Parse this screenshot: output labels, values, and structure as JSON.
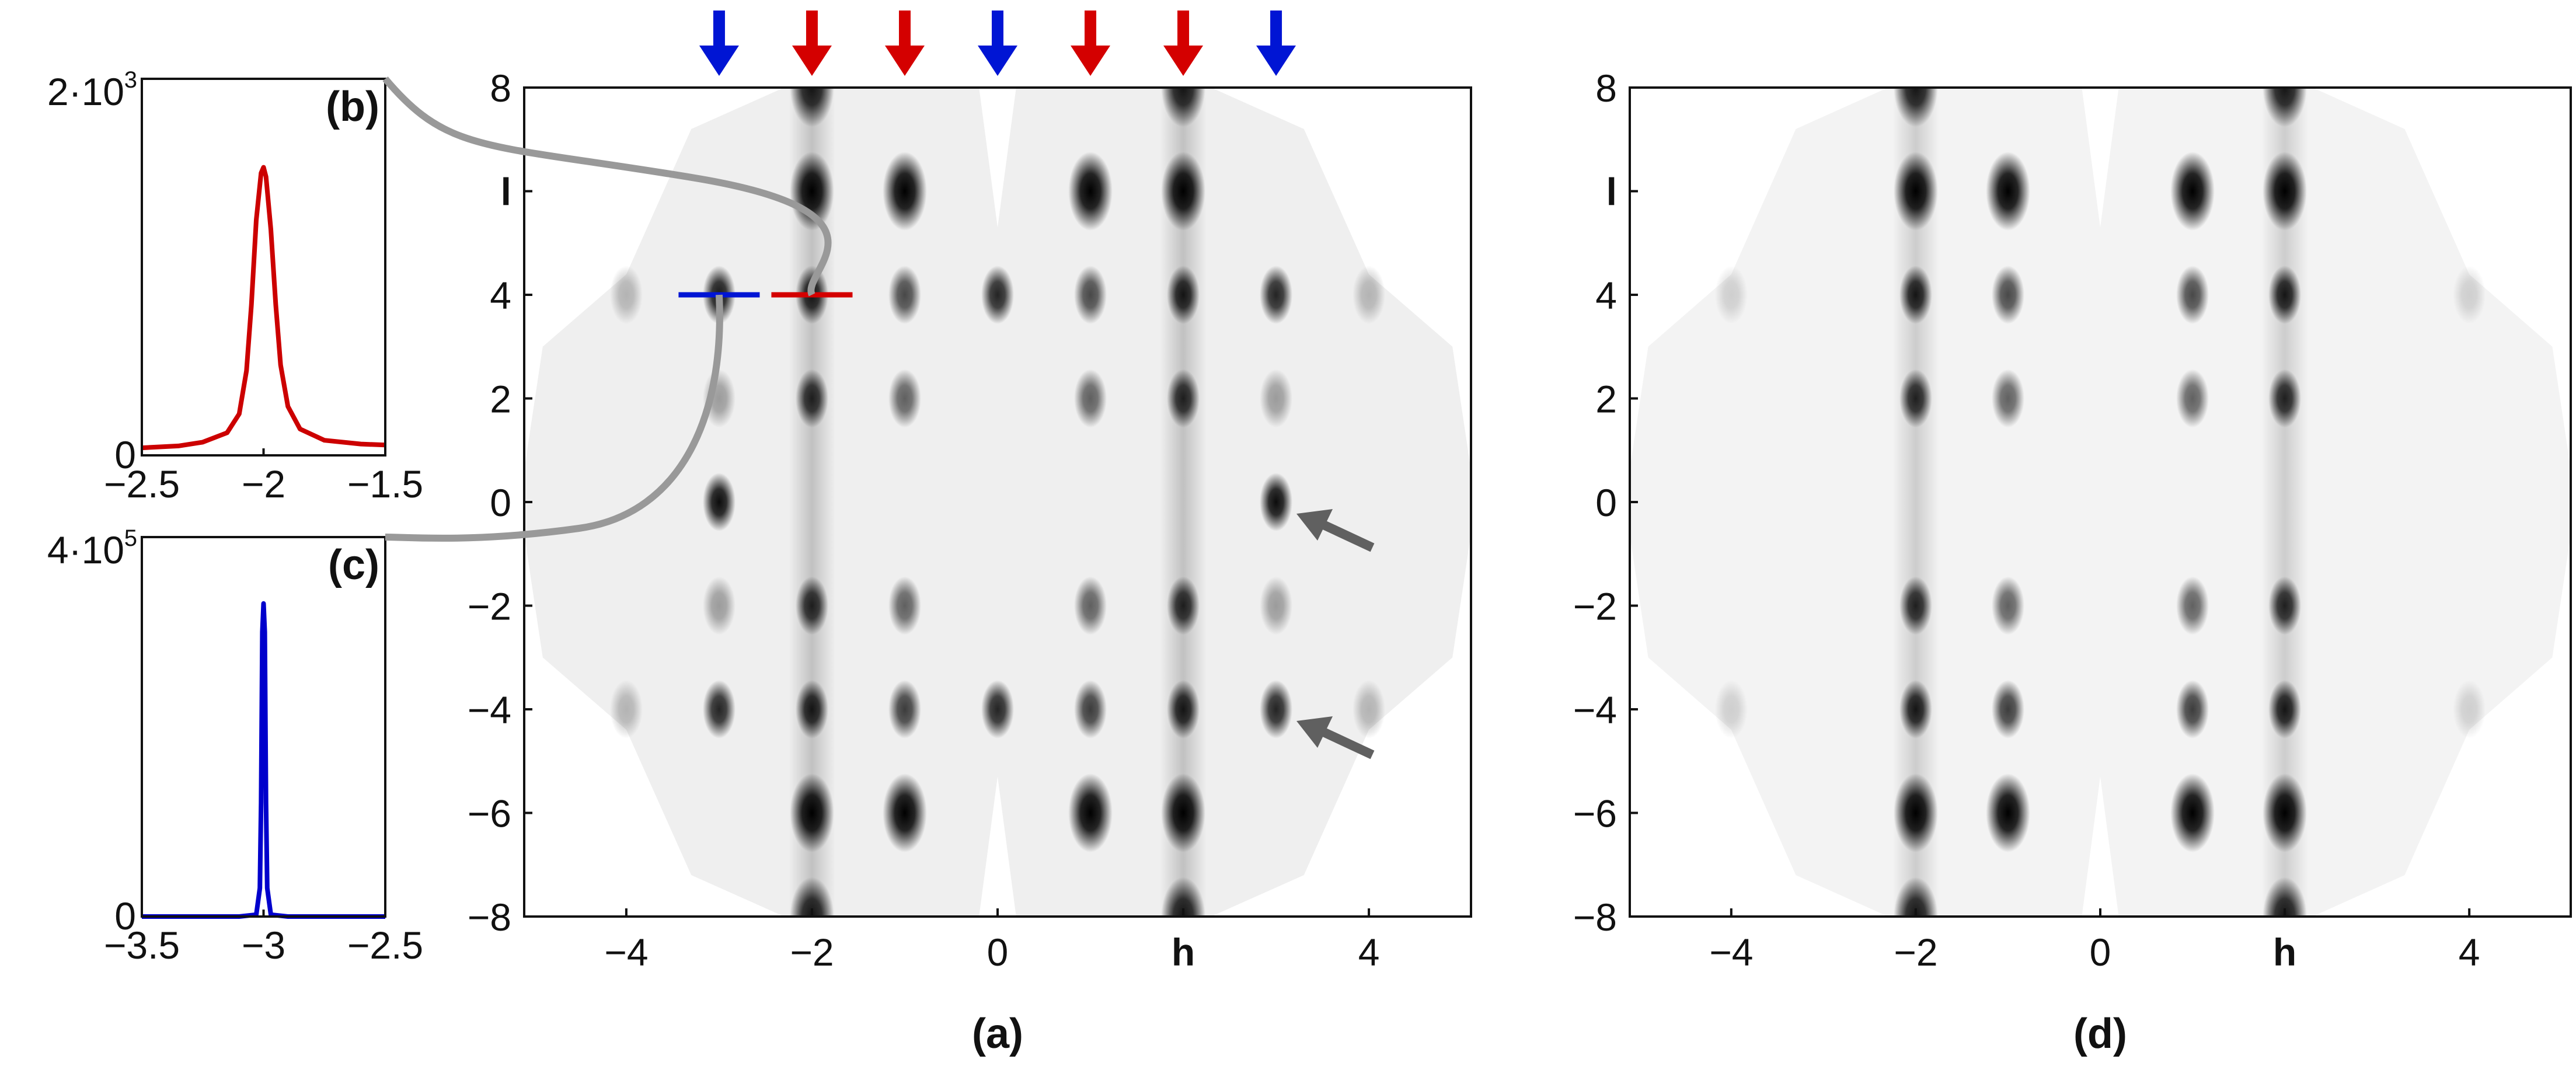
{
  "chart_data": [
    {
      "id": "a",
      "type": "heatmap",
      "panel_label": "(a)",
      "xlabel": "h",
      "ylabel": "l",
      "xlim": [
        -5.1,
        5.1
      ],
      "ylim": [
        -8,
        8
      ],
      "x_ticks": [
        "−4",
        "−2",
        "0",
        "h",
        "4"
      ],
      "x_tick_values": [
        -4,
        -2,
        0,
        2,
        4
      ],
      "y_ticks": [
        "8",
        "l",
        "4",
        "2",
        "0",
        "−2",
        "−4",
        "−6",
        "−8"
      ],
      "y_tick_values": [
        8,
        6,
        4,
        2,
        0,
        -2,
        -4,
        -6,
        -8
      ],
      "grid": false,
      "colormap": "grayscale (white = 0, black = high intensity)",
      "column_markers": [
        {
          "h": -3,
          "color": "#0015d4",
          "kind": "down-arrow"
        },
        {
          "h": -2,
          "color": "#d40000",
          "kind": "down-arrow"
        },
        {
          "h": -1,
          "color": "#d40000",
          "kind": "down-arrow"
        },
        {
          "h": 0,
          "color": "#0015d4",
          "kind": "down-arrow"
        },
        {
          "h": 1,
          "color": "#d40000",
          "kind": "down-arrow"
        },
        {
          "h": 2,
          "color": "#d40000",
          "kind": "down-arrow"
        },
        {
          "h": 3,
          "color": "#0015d4",
          "kind": "down-arrow"
        }
      ],
      "cut_lines": [
        {
          "color": "#0015d4",
          "l": 4,
          "h_range": [
            -3.5,
            -2.5
          ],
          "links_to": "c"
        },
        {
          "color": "#d40000",
          "l": 4,
          "h_range": [
            -2.5,
            -1.5
          ],
          "links_to": "b"
        }
      ],
      "annotation_arrows": [
        {
          "h": 3,
          "l": 0,
          "color": "#606060"
        },
        {
          "h": 3,
          "l": -4,
          "color": "#606060"
        }
      ],
      "spots": [
        {
          "h": -2,
          "l": 8,
          "intensity": 0.9
        },
        {
          "h": -2,
          "l": 6,
          "intensity": 1.0
        },
        {
          "h": -2,
          "l": 4,
          "intensity": 0.9
        },
        {
          "h": -2,
          "l": 2,
          "intensity": 0.85
        },
        {
          "h": -2,
          "l": -2,
          "intensity": 0.85
        },
        {
          "h": -2,
          "l": -4,
          "intensity": 0.9
        },
        {
          "h": -2,
          "l": -6,
          "intensity": 1.0
        },
        {
          "h": -2,
          "l": -8,
          "intensity": 0.9
        },
        {
          "h": -1,
          "l": 6,
          "intensity": 1.0
        },
        {
          "h": -1,
          "l": 4,
          "intensity": 0.7
        },
        {
          "h": -1,
          "l": 2,
          "intensity": 0.6
        },
        {
          "h": -1,
          "l": -2,
          "intensity": 0.6
        },
        {
          "h": -1,
          "l": -4,
          "intensity": 0.75
        },
        {
          "h": -1,
          "l": -6,
          "intensity": 1.0
        },
        {
          "h": 1,
          "l": 6,
          "intensity": 1.0
        },
        {
          "h": 1,
          "l": 4,
          "intensity": 0.7
        },
        {
          "h": 1,
          "l": 2,
          "intensity": 0.6
        },
        {
          "h": 1,
          "l": -2,
          "intensity": 0.6
        },
        {
          "h": 1,
          "l": -4,
          "intensity": 0.75
        },
        {
          "h": 1,
          "l": -6,
          "intensity": 1.0
        },
        {
          "h": 2,
          "l": 8,
          "intensity": 0.9
        },
        {
          "h": 2,
          "l": 6,
          "intensity": 1.0
        },
        {
          "h": 2,
          "l": 4,
          "intensity": 0.9
        },
        {
          "h": 2,
          "l": 2,
          "intensity": 0.85
        },
        {
          "h": 2,
          "l": -2,
          "intensity": 0.85
        },
        {
          "h": 2,
          "l": -4,
          "intensity": 0.9
        },
        {
          "h": 2,
          "l": -6,
          "intensity": 1.0
        },
        {
          "h": 2,
          "l": -8,
          "intensity": 0.9
        },
        {
          "h": -3,
          "l": 4,
          "intensity": 0.9
        },
        {
          "h": -3,
          "l": 0,
          "intensity": 0.95
        },
        {
          "h": -3,
          "l": -4,
          "intensity": 0.85
        },
        {
          "h": -3,
          "l": 2,
          "intensity": 0.35
        },
        {
          "h": -3,
          "l": -2,
          "intensity": 0.35
        },
        {
          "h": 3,
          "l": 4,
          "intensity": 0.85
        },
        {
          "h": 3,
          "l": 0,
          "intensity": 0.95
        },
        {
          "h": 3,
          "l": -4,
          "intensity": 0.85
        },
        {
          "h": 3,
          "l": 2,
          "intensity": 0.35
        },
        {
          "h": 3,
          "l": -2,
          "intensity": 0.35
        },
        {
          "h": 0,
          "l": 4,
          "intensity": 0.85
        },
        {
          "h": 0,
          "l": -4,
          "intensity": 0.85
        },
        {
          "h": -4,
          "l": 4,
          "intensity": 0.25
        },
        {
          "h": -4,
          "l": -4,
          "intensity": 0.25
        },
        {
          "h": 4,
          "l": 4,
          "intensity": 0.25
        },
        {
          "h": 4,
          "l": -4,
          "intensity": 0.25
        }
      ]
    },
    {
      "id": "b",
      "type": "line",
      "panel_label": "(b)",
      "xlim": [
        -2.5,
        -1.5
      ],
      "x_ticks": [
        "−2.5",
        "−2",
        "−1.5"
      ],
      "x_tick_values": [
        -2.5,
        -2,
        -1.5
      ],
      "y_tick_labels": [
        {
          "mantissa": "2·10",
          "exponent": "3",
          "value": 2000
        },
        {
          "mantissa": "0",
          "exponent": "",
          "value": 0
        }
      ],
      "ylim": [
        0,
        2000
      ],
      "series": [
        {
          "color": "#cc0000",
          "x": [
            -2.5,
            -2.35,
            -2.25,
            -2.15,
            -2.1,
            -2.07,
            -2.05,
            -2.03,
            -2.01,
            -2.0,
            -1.99,
            -1.97,
            -1.95,
            -1.93,
            -1.9,
            -1.85,
            -1.75,
            -1.6,
            -1.5
          ],
          "y": [
            40,
            50,
            70,
            120,
            220,
            450,
            800,
            1250,
            1500,
            1530,
            1480,
            1200,
            800,
            480,
            260,
            140,
            80,
            60,
            55
          ]
        }
      ]
    },
    {
      "id": "c",
      "type": "line",
      "panel_label": "(c)",
      "xlim": [
        -3.5,
        -2.5
      ],
      "x_ticks": [
        "−3.5",
        "−3",
        "−2.5"
      ],
      "x_tick_values": [
        -3.5,
        -3,
        -2.5
      ],
      "y_tick_labels": [
        {
          "mantissa": "4·10",
          "exponent": "5",
          "value": 400000
        },
        {
          "mantissa": "0",
          "exponent": "",
          "value": 0
        }
      ],
      "ylim": [
        0,
        400000
      ],
      "series": [
        {
          "color": "#0000cc",
          "x": [
            -3.5,
            -3.1,
            -3.03,
            -3.015,
            -3.01,
            -3.005,
            -3.0,
            -2.995,
            -2.99,
            -2.985,
            -2.97,
            -2.9,
            -2.5
          ],
          "y": [
            0,
            0,
            2000,
            30000,
            120000,
            300000,
            330000,
            300000,
            120000,
            30000,
            2000,
            0,
            0
          ]
        }
      ]
    },
    {
      "id": "d",
      "type": "heatmap",
      "panel_label": "(d)",
      "xlabel": "h",
      "ylabel": "l",
      "xlim": [
        -5.1,
        5.1
      ],
      "ylim": [
        -8,
        8
      ],
      "x_ticks": [
        "−4",
        "−2",
        "0",
        "h",
        "4"
      ],
      "x_tick_values": [
        -4,
        -2,
        0,
        2,
        4
      ],
      "y_ticks": [
        "8",
        "l",
        "4",
        "2",
        "0",
        "−2",
        "−4",
        "−6",
        "−8"
      ],
      "y_tick_values": [
        8,
        6,
        4,
        2,
        0,
        -2,
        -4,
        -6,
        -8
      ],
      "grid": false,
      "colormap": "grayscale (white = 0, black = high intensity)",
      "spots": [
        {
          "h": -2,
          "l": 8,
          "intensity": 0.9
        },
        {
          "h": -2,
          "l": 6,
          "intensity": 1.0
        },
        {
          "h": -2,
          "l": 4,
          "intensity": 0.9
        },
        {
          "h": -2,
          "l": 2,
          "intensity": 0.85
        },
        {
          "h": -2,
          "l": -2,
          "intensity": 0.85
        },
        {
          "h": -2,
          "l": -4,
          "intensity": 0.9
        },
        {
          "h": -2,
          "l": -6,
          "intensity": 1.0
        },
        {
          "h": -2,
          "l": -8,
          "intensity": 0.9
        },
        {
          "h": -1,
          "l": 6,
          "intensity": 1.0
        },
        {
          "h": -1,
          "l": 4,
          "intensity": 0.7
        },
        {
          "h": -1,
          "l": 2,
          "intensity": 0.6
        },
        {
          "h": -1,
          "l": -2,
          "intensity": 0.6
        },
        {
          "h": -1,
          "l": -4,
          "intensity": 0.75
        },
        {
          "h": -1,
          "l": -6,
          "intensity": 1.0
        },
        {
          "h": 1,
          "l": 6,
          "intensity": 1.0
        },
        {
          "h": 1,
          "l": 4,
          "intensity": 0.7
        },
        {
          "h": 1,
          "l": 2,
          "intensity": 0.6
        },
        {
          "h": 1,
          "l": -2,
          "intensity": 0.6
        },
        {
          "h": 1,
          "l": -4,
          "intensity": 0.75
        },
        {
          "h": 1,
          "l": -6,
          "intensity": 1.0
        },
        {
          "h": 2,
          "l": 8,
          "intensity": 0.9
        },
        {
          "h": 2,
          "l": 6,
          "intensity": 1.0
        },
        {
          "h": 2,
          "l": 4,
          "intensity": 0.9
        },
        {
          "h": 2,
          "l": 2,
          "intensity": 0.85
        },
        {
          "h": 2,
          "l": -2,
          "intensity": 0.85
        },
        {
          "h": 2,
          "l": -4,
          "intensity": 0.9
        },
        {
          "h": 2,
          "l": -6,
          "intensity": 1.0
        },
        {
          "h": 2,
          "l": -8,
          "intensity": 0.9
        },
        {
          "h": -4,
          "l": 4,
          "intensity": 0.15
        },
        {
          "h": -4,
          "l": -4,
          "intensity": 0.15
        },
        {
          "h": 4,
          "l": 4,
          "intensity": 0.15
        },
        {
          "h": 4,
          "l": -4,
          "intensity": 0.15
        }
      ]
    }
  ]
}
